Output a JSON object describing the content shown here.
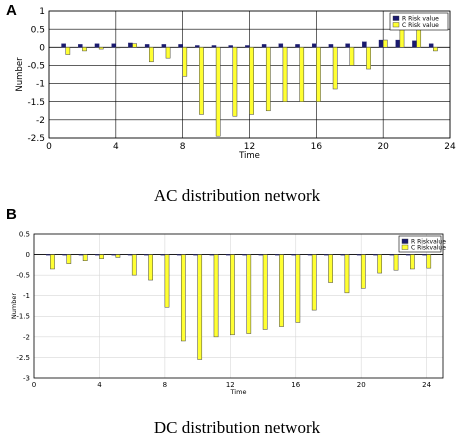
{
  "chart_data": [
    {
      "panel": "A",
      "type": "bar",
      "caption": "AC distribution network",
      "xlabel": "Time",
      "ylabel": "Number",
      "xlim": [
        0,
        24
      ],
      "ylim": [
        -2.5,
        1
      ],
      "xticks": [
        0,
        4,
        8,
        12,
        16,
        20,
        24
      ],
      "yticks": [
        1,
        0.5,
        0,
        -0.5,
        -1,
        -1.5,
        -2,
        -2.5
      ],
      "ytick_labels": [
        "1",
        "0.5",
        "0",
        "-0.5",
        "-1",
        "-1.5",
        "-2",
        "-2.5"
      ],
      "grid": true,
      "legend_position": "top-right",
      "x": [
        1,
        2,
        3,
        4,
        5,
        6,
        7,
        8,
        9,
        10,
        11,
        12,
        13,
        14,
        15,
        16,
        17,
        18,
        19,
        20,
        21,
        22,
        23
      ],
      "series": [
        {
          "name": "R Risk value",
          "color": "#1a1a6e",
          "values": [
            0.1,
            0.08,
            0.1,
            0.1,
            0.12,
            0.08,
            0.08,
            0.08,
            0.05,
            0.05,
            0.05,
            0.05,
            0.08,
            0.1,
            0.08,
            0.1,
            0.08,
            0.1,
            0.15,
            0.2,
            0.2,
            0.18,
            0.1
          ]
        },
        {
          "name": "C Risk value",
          "color": "#ffff33",
          "values": [
            -0.2,
            -0.1,
            -0.05,
            0,
            0.1,
            -0.4,
            -0.3,
            -0.8,
            -1.85,
            -2.45,
            -1.9,
            -1.85,
            -1.75,
            -1.5,
            -1.5,
            -1.5,
            -1.15,
            -0.5,
            -0.6,
            0.2,
            0.7,
            0.65,
            -0.1
          ]
        }
      ]
    },
    {
      "panel": "B",
      "type": "bar",
      "caption": "DC distribution network",
      "xlabel": "Time",
      "ylabel": "Number",
      "xlim": [
        0,
        25
      ],
      "ylim": [
        -3,
        0.5
      ],
      "xticks": [
        0,
        4,
        8,
        12,
        16,
        20,
        24
      ],
      "yticks": [
        0.5,
        0,
        -0.5,
        -1,
        -1.5,
        -2,
        -2.5,
        -3
      ],
      "ytick_labels": [
        "0.5",
        "0",
        "-0.5",
        "-1",
        "-1.5",
        "-2",
        "-2.5",
        "-3"
      ],
      "grid": true,
      "legend_position": "top-right",
      "x": [
        1,
        2,
        3,
        4,
        5,
        6,
        7,
        8,
        9,
        10,
        11,
        12,
        13,
        14,
        15,
        16,
        17,
        18,
        19,
        20,
        21,
        22,
        23,
        24
      ],
      "series": [
        {
          "name": "R Riskvalue",
          "color": "#1a1a6e",
          "values": [
            0,
            0,
            0,
            0,
            0,
            0,
            0,
            0,
            0,
            0,
            0,
            0,
            0,
            0,
            0,
            0,
            0,
            0,
            0,
            0,
            0,
            0,
            0,
            0
          ]
        },
        {
          "name": "C Riskvalue",
          "color": "#ffff33",
          "values": [
            -0.35,
            -0.22,
            -0.15,
            -0.1,
            -0.07,
            -0.5,
            -0.62,
            -1.28,
            -2.1,
            -2.55,
            -2.0,
            -1.95,
            -1.92,
            -1.82,
            -1.75,
            -1.65,
            -1.35,
            -0.68,
            -0.93,
            -0.82,
            -0.45,
            -0.38,
            -0.35,
            -0.33
          ]
        }
      ]
    }
  ]
}
